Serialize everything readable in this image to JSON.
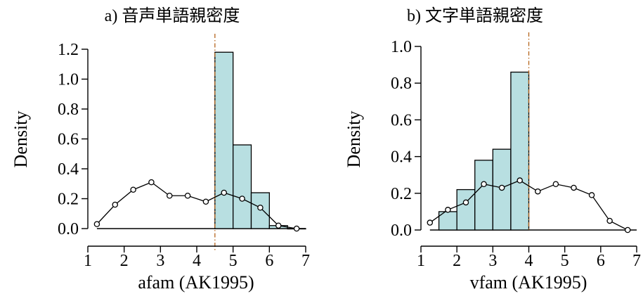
{
  "chart_data": [
    {
      "type": "bar",
      "title": "a) 音声単語親密度",
      "xlabel": "afam (AK1995)",
      "ylabel": "Density",
      "xlim": [
        1,
        7
      ],
      "ylim": [
        0,
        1.2
      ],
      "xticks": [
        "1",
        "2",
        "3",
        "4",
        "5",
        "6",
        "7"
      ],
      "yticks": [
        "0.0",
        "0.2",
        "0.4",
        "0.6",
        "0.8",
        "1.0",
        "1.2"
      ],
      "histogram": {
        "bin_edges": [
          4.5,
          5.0,
          5.5,
          6.0,
          6.5,
          7.0
        ],
        "density": [
          1.18,
          0.56,
          0.24,
          0.02,
          0.0
        ]
      },
      "reference_line_x": 4.5,
      "reference_line_color": "#b5651d",
      "bar_color": "#b8dfe1",
      "overlay_line": {
        "x": [
          1.25,
          1.75,
          2.25,
          2.75,
          3.25,
          3.75,
          4.25,
          4.75,
          5.25,
          5.75,
          6.25,
          6.75
        ],
        "y": [
          0.03,
          0.16,
          0.26,
          0.31,
          0.22,
          0.22,
          0.18,
          0.24,
          0.2,
          0.14,
          0.02,
          0.0
        ]
      }
    },
    {
      "type": "bar",
      "title": "b) 文字単語親密度",
      "xlabel": "vfam (AK1995)",
      "ylabel": "Density",
      "xlim": [
        1,
        7
      ],
      "ylim": [
        0,
        1.0
      ],
      "xticks": [
        "1",
        "2",
        "3",
        "4",
        "5",
        "6",
        "7"
      ],
      "yticks": [
        "0.0",
        "0.2",
        "0.4",
        "0.6",
        "0.8",
        "1.0"
      ],
      "histogram": {
        "bin_edges": [
          1.5,
          2.0,
          2.5,
          3.0,
          3.5,
          4.0
        ],
        "density": [
          0.1,
          0.22,
          0.38,
          0.44,
          0.86
        ]
      },
      "reference_line_x": 4.0,
      "reference_line_color": "#b5651d",
      "bar_color": "#b8dfe1",
      "overlay_line": {
        "x": [
          1.25,
          1.75,
          2.25,
          2.75,
          3.25,
          3.75,
          4.25,
          4.75,
          5.25,
          5.75,
          6.25,
          6.75
        ],
        "y": [
          0.04,
          0.11,
          0.15,
          0.25,
          0.23,
          0.27,
          0.21,
          0.25,
          0.23,
          0.19,
          0.05,
          0.0
        ]
      }
    }
  ]
}
